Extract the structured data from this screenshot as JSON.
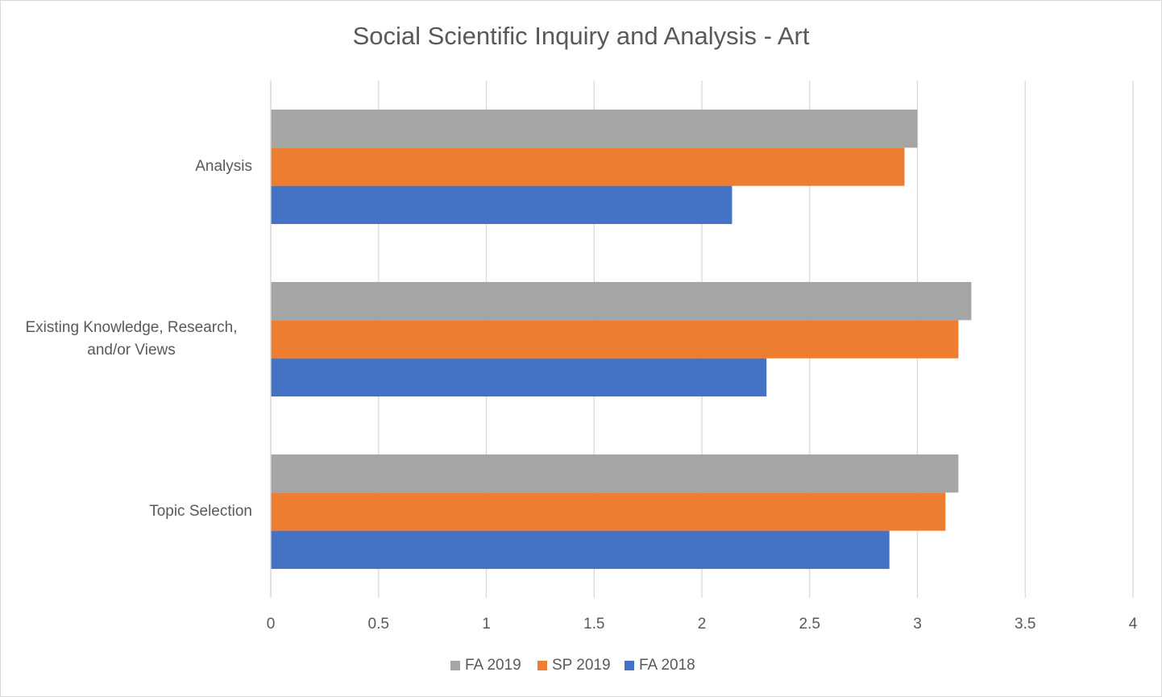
{
  "chart_data": {
    "type": "barh",
    "title": "Social Scientific Inquiry and Analysis - Art",
    "categories": [
      "Analysis",
      "Existing Knowledge, Research, and/or Views",
      "Topic Selection"
    ],
    "series": [
      {
        "name": "FA 2019",
        "color": "#a5a5a5",
        "values": [
          3.0,
          3.25,
          3.19
        ]
      },
      {
        "name": "SP 2019",
        "color": "#ed7d31",
        "values": [
          2.94,
          3.19,
          3.13
        ]
      },
      {
        "name": "FA 2018",
        "color": "#4472c4",
        "values": [
          2.14,
          2.3,
          2.87
        ]
      }
    ],
    "xlim": [
      0,
      4
    ],
    "xticks": [
      0,
      0.5,
      1,
      1.5,
      2,
      2.5,
      3,
      3.5,
      4
    ],
    "grid": true,
    "legend": "bottom"
  }
}
